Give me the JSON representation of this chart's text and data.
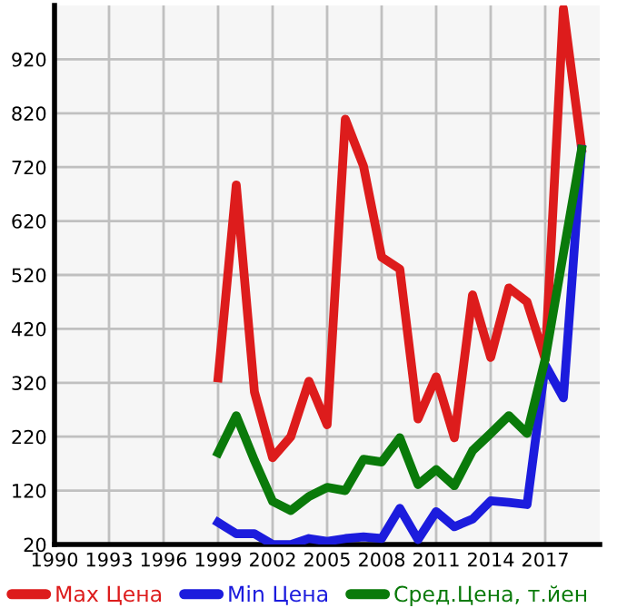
{
  "chart_data": {
    "type": "line",
    "x": [
      1999,
      2000,
      2001,
      2002,
      2003,
      2004,
      2005,
      2006,
      2007,
      2008,
      2009,
      2010,
      2011,
      2012,
      2013,
      2014,
      2015,
      2016,
      2017,
      2018,
      2019
    ],
    "series": [
      {
        "name": "Max Цена",
        "color": "#dd1c1c",
        "values": [
          329,
          687,
          303,
          181,
          220,
          323,
          242,
          809,
          722,
          553,
          531,
          253,
          331,
          218,
          483,
          367,
          496,
          470,
          364,
          1014,
          755
        ]
      },
      {
        "name": "Min Цена",
        "color": "#1c1cdd",
        "values": [
          61,
          40,
          40,
          20,
          20,
          31,
          26,
          31,
          34,
          31,
          87,
          29,
          81,
          53,
          67,
          101,
          98,
          94,
          353,
          292,
          753
        ]
      },
      {
        "name": "Сред.Цена, т.йен",
        "color": "#0a7a0a",
        "values": [
          190,
          259,
          176,
          100,
          83,
          109,
          126,
          120,
          178,
          173,
          218,
          131,
          159,
          129,
          194,
          226,
          259,
          226,
          364,
          560,
          753
        ]
      }
    ],
    "xlim": [
      1990,
      2020
    ],
    "xticks": [
      1990,
      1993,
      1996,
      1999,
      2002,
      2005,
      2008,
      2011,
      2014,
      2017
    ],
    "ylim": [
      20,
      1020
    ],
    "yticks": [
      20,
      120,
      220,
      320,
      420,
      520,
      620,
      720,
      820,
      920
    ],
    "grid": true,
    "legend": "bottom",
    "line_style": "solid",
    "marker": "none"
  }
}
